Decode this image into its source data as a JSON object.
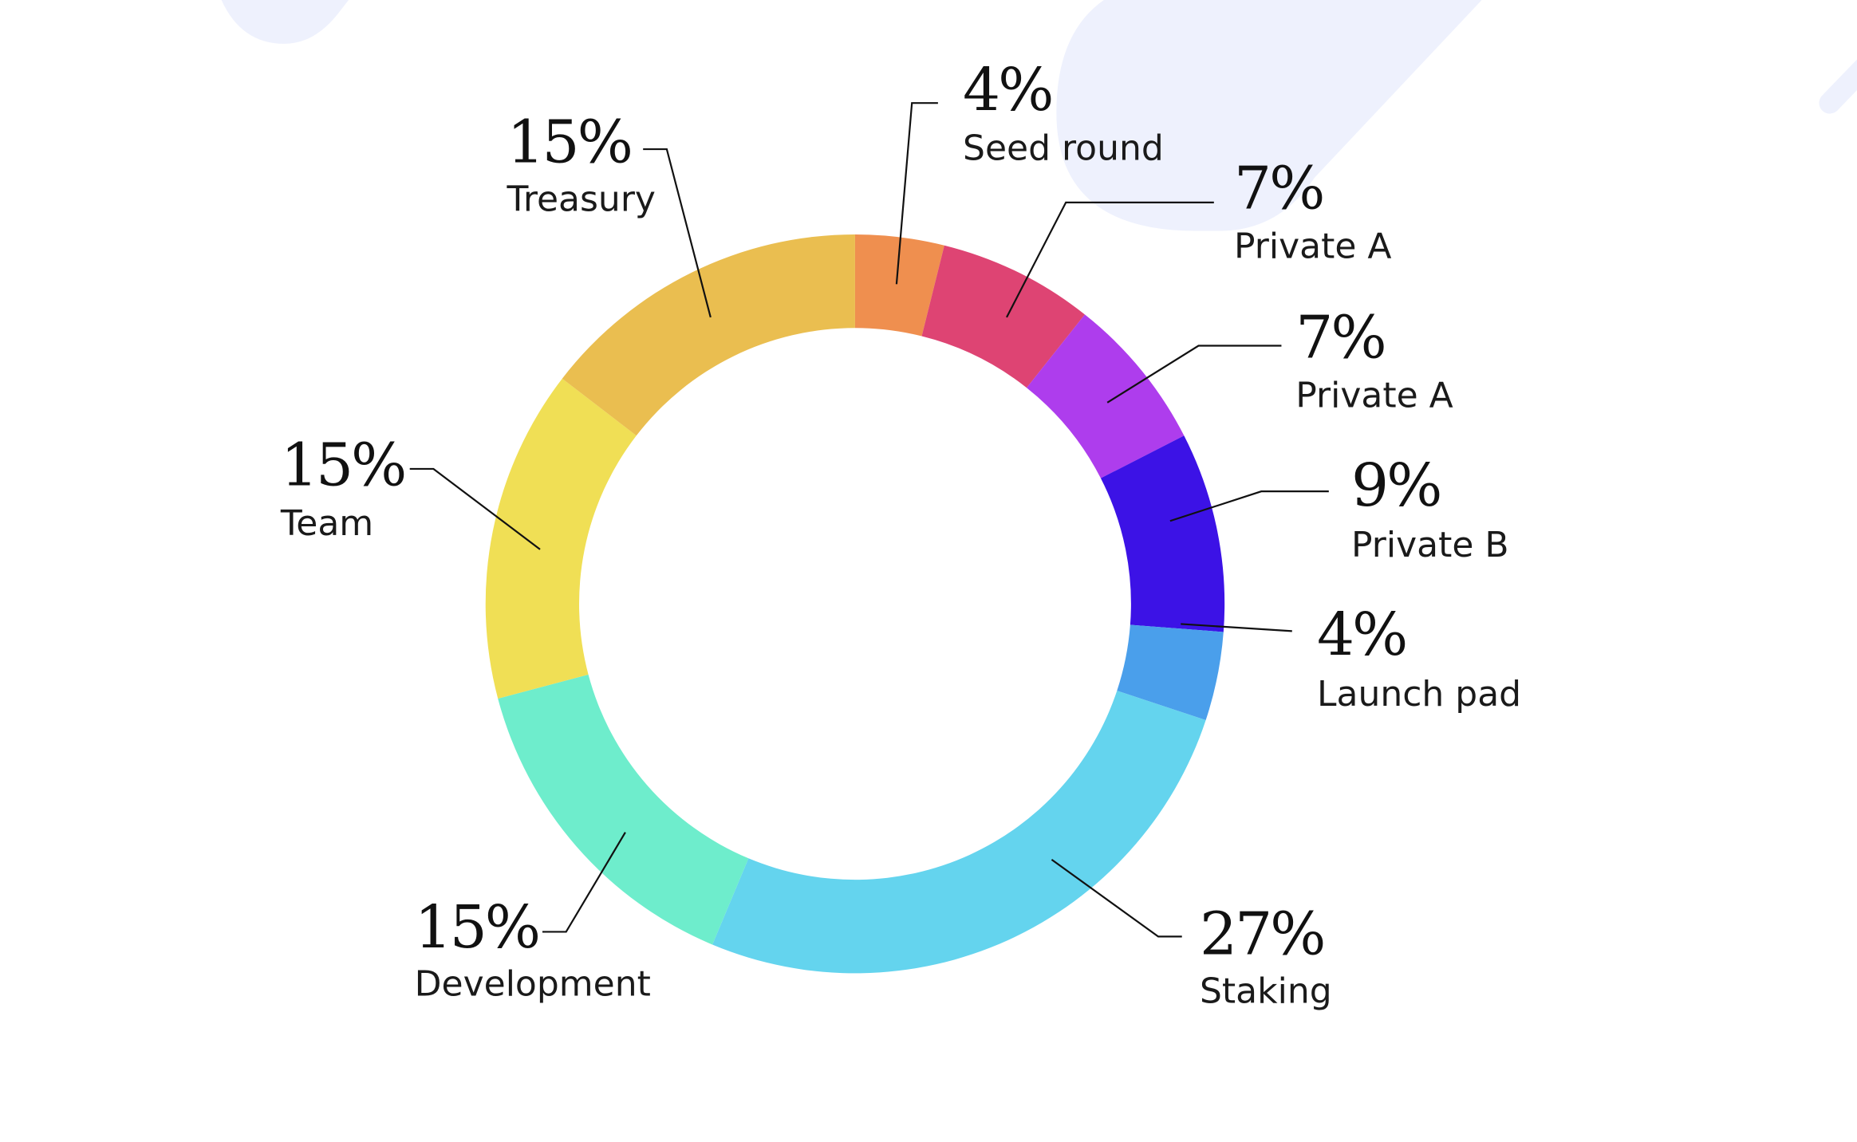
{
  "chart_data": {
    "type": "pie",
    "donut": true,
    "slices": [
      {
        "value": 4,
        "value_label": "4%",
        "label": "Seed round",
        "color": "#ef8f4f"
      },
      {
        "value": 7,
        "value_label": "7%",
        "label": "Private A",
        "color": "#de4473"
      },
      {
        "value": 7,
        "value_label": "7%",
        "label": "Private A",
        "color": "#ae3ded"
      },
      {
        "value": 9,
        "value_label": "9%",
        "label": "Private B",
        "color": "#3c12e6"
      },
      {
        "value": 4,
        "value_label": "4%",
        "label": "Launch pad",
        "color": "#4a9feb"
      },
      {
        "value": 27,
        "value_label": "27%",
        "label": "Staking",
        "color": "#64d4ee"
      },
      {
        "value": 15,
        "value_label": "15%",
        "label": "Development",
        "color": "#6eedcc"
      },
      {
        "value": 15,
        "value_label": "15%",
        "label": "Team",
        "color": "#f0df55"
      },
      {
        "value": 15,
        "value_label": "15%",
        "label": "Treasury",
        "color": "#eabe50"
      }
    ]
  },
  "background_shape_color": "#eef1fd"
}
